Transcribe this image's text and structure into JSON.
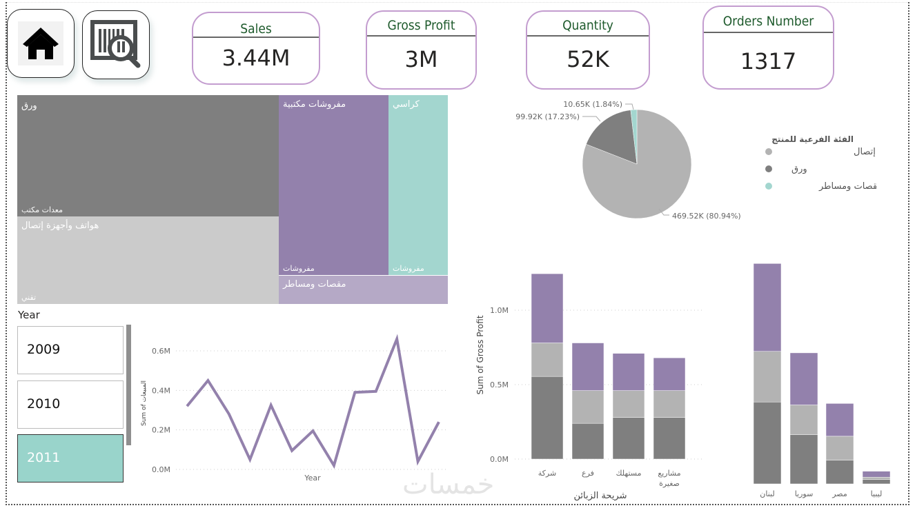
{
  "nav": {
    "home_icon": "home-icon",
    "barcode_search_icon": "barcode-search-icon"
  },
  "kpis": [
    {
      "title": "Sales",
      "value": "3.44M"
    },
    {
      "title": "Gross Profit",
      "value": "3M"
    },
    {
      "title": "Quantity",
      "value": "52K"
    },
    {
      "title": "Orders Number",
      "value": "1317"
    }
  ],
  "colors": {
    "dark_gray": "#7f7f7f",
    "light_gray": "#b3b3b3",
    "purple": "#9381ac",
    "teal": "#a3d6cf",
    "lavender": "#b5a9c6",
    "treemap_light": "#cbcbcb",
    "kpi_border": "#c39ccf",
    "kpi_title": "#1e5a2c"
  },
  "treemap": {
    "tiles": [
      {
        "label": "ورق",
        "group": "معدات مكتب",
        "color": "#7f7f7f"
      },
      {
        "label": "هواتف وأجهزة إتصال",
        "group": "تقني",
        "color": "#cbcbcb"
      },
      {
        "label": "مفروشات مكتبية",
        "group": "مفروشات",
        "color": "#9381ac"
      },
      {
        "label": "كراسي",
        "group": "مفروشات",
        "color": "#a3d6cf"
      },
      {
        "label": "مقصات ومساطر",
        "group": "",
        "color": "#b5a9c6"
      }
    ]
  },
  "slicer": {
    "title": "Year",
    "items": [
      {
        "label": "2009",
        "selected": false
      },
      {
        "label": "2010",
        "selected": false
      },
      {
        "label": "2011",
        "selected": true
      }
    ]
  },
  "watermark": "خمسات",
  "chart_data": [
    {
      "type": "pie",
      "legend_title": "الفئة الفرعية للمنتج",
      "legend_position": "right",
      "slices": [
        {
          "name": "هواتف وأجهزة إتصال",
          "value": 469.52,
          "unit": "K",
          "percent": 80.94,
          "label": "469.52K (80.94%)",
          "color": "#b3b3b3"
        },
        {
          "name": "ورق",
          "value": 99.92,
          "unit": "K",
          "percent": 17.23,
          "label": "99.92K (17.23%)",
          "color": "#7f7f7f"
        },
        {
          "name": "مقصات ومساطر",
          "value": 10.65,
          "unit": "K",
          "percent": 1.84,
          "label": "10.65K (1.84%)",
          "color": "#a3d6cf"
        }
      ]
    },
    {
      "type": "line",
      "xlabel": "Year",
      "ylabel": "Sum of المبيعات",
      "ylim": [
        0,
        0.7
      ],
      "yticks": [
        0,
        0.2,
        0.4,
        0.6
      ],
      "ytick_labels": [
        "0.0M",
        "0.2M",
        "0.4M",
        "0.6M"
      ],
      "grid": true,
      "color": "#9381ac",
      "values": [
        0.32,
        0.45,
        0.28,
        0.05,
        0.325,
        0.095,
        0.195,
        0.02,
        0.39,
        0.395,
        0.66,
        0.04,
        0.24
      ]
    },
    {
      "type": "bar",
      "stacked": true,
      "xlabel": "شريحة الزبائن",
      "ylabel": "Sum of Gross Profit",
      "ylim": [
        0,
        1.3
      ],
      "yticks": [
        0,
        0.5,
        1.0
      ],
      "ytick_labels": [
        "0.0M",
        "0.5M",
        "1.0M"
      ],
      "grid": true,
      "categories": [
        "شركة",
        "فرع",
        "مستهلك",
        "مشاريع صغيرة"
      ],
      "series": [
        {
          "name": "ورق",
          "color": "#7f7f7f",
          "values": [
            0.555,
            0.24,
            0.28,
            0.28
          ]
        },
        {
          "name": "هواتف وأجهزة إتصال",
          "color": "#b3b3b3",
          "values": [
            0.225,
            0.22,
            0.18,
            0.18
          ]
        },
        {
          "name": "مفروشات",
          "color": "#9381ac",
          "values": [
            0.465,
            0.32,
            0.25,
            0.22
          ]
        }
      ]
    },
    {
      "type": "bar",
      "stacked": true,
      "xlabel": "",
      "ylabel": "",
      "ylim": [
        0,
        1.6
      ],
      "categories": [
        "لبنان",
        "سوريا",
        "مصر",
        "ليبيا"
      ],
      "series": [
        {
          "name": "ورق",
          "color": "#7f7f7f",
          "values": [
            0.55,
            0.33,
            0.16,
            0.03
          ]
        },
        {
          "name": "هواتف وأجهزة إتصال",
          "color": "#b3b3b3",
          "values": [
            0.34,
            0.2,
            0.16,
            0.015
          ]
        },
        {
          "name": "مفروشات",
          "color": "#9381ac",
          "values": [
            0.59,
            0.35,
            0.22,
            0.04
          ]
        }
      ]
    }
  ]
}
